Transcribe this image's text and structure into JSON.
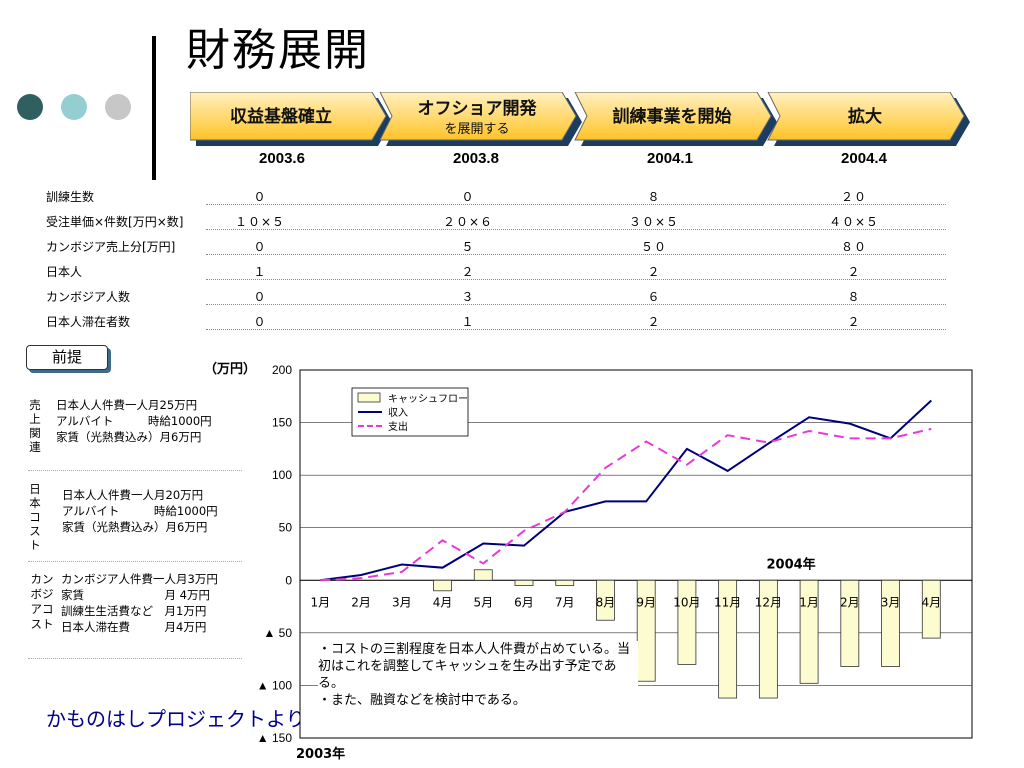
{
  "page_title": "財務展開",
  "stages": [
    {
      "label": "収益基盤確立",
      "sub": "",
      "date": "2003.6"
    },
    {
      "label": "オフショア開発",
      "sub": "を展開する",
      "date": "2003.8"
    },
    {
      "label": "訓練事業を開始",
      "sub": "",
      "date": "2004.1"
    },
    {
      "label": "拡大",
      "sub": "",
      "date": "2004.4"
    }
  ],
  "metrics": [
    {
      "label": "訓練生数",
      "values": [
        "０",
        "０",
        "８",
        "２０"
      ]
    },
    {
      "label": "受注単価×件数[万円×数]",
      "values": [
        "１０×５",
        "２０×６",
        "３０×５",
        "４０×５"
      ]
    },
    {
      "label": "カンボジア売上分[万円]",
      "values": [
        "０",
        "５",
        "５０",
        "８０"
      ]
    },
    {
      "label": "日本人",
      "values": [
        "１",
        "２",
        "２",
        "２"
      ]
    },
    {
      "label": "カンボジア人数",
      "values": [
        "０",
        "３",
        "６",
        "８"
      ]
    },
    {
      "label": "日本人滞在者数",
      "values": [
        "０",
        "１",
        "２",
        "２"
      ]
    }
  ],
  "premise_label": "前提",
  "sections": [
    {
      "head": "売上関連",
      "lines": [
        "日本人人件費一人月25万円",
        "アルバイト　　　時給1000円",
        "家賃（光熱費込み）月6万円"
      ]
    },
    {
      "head": "日本コスト",
      "lines": [
        "日本人人件費一人月20万円",
        "アルバイト　　　時給1000円",
        "家賃（光熱費込み）月6万円"
      ]
    },
    {
      "head": "カンボジアコスト",
      "lines": [
        "カンボジア人件費一人月3万円",
        "家賃　　　　　　　月 4万円",
        "訓練生生活費など　月1万円",
        "日本人滞在費　　　月4万円"
      ]
    }
  ],
  "credit": "かものはしプロジェクトより",
  "note_lines": [
    "・コストの三割程度を日本人人件費が占めている。当初はこれを調整してキャッシュを生み出す予定である。",
    "・また、融資などを検討中である。"
  ],
  "chart_data": {
    "type": "bar",
    "unit_label": "（万円）",
    "categories": [
      "1月",
      "2月",
      "3月",
      "4月",
      "5月",
      "6月",
      "7月",
      "8月",
      "9月",
      "10月",
      "11月",
      "12月",
      "1月",
      "2月",
      "3月",
      "4月"
    ],
    "year_labels": [
      "2003年",
      "2004年"
    ],
    "ylim": [
      -150,
      200
    ],
    "yticks": [
      {
        "v": 200,
        "label": "200"
      },
      {
        "v": 150,
        "label": "150"
      },
      {
        "v": 100,
        "label": "100"
      },
      {
        "v": 50,
        "label": "50"
      },
      {
        "v": 0,
        "label": "0"
      },
      {
        "v": -50,
        "label": "▲ 50"
      },
      {
        "v": -100,
        "label": "▲ 100"
      },
      {
        "v": -150,
        "label": "▲ 150"
      }
    ],
    "grid": true,
    "legend_position": "top-left",
    "series": [
      {
        "name": "キャッシュフロー",
        "kind": "bar",
        "color": "#fdfbd0",
        "values": [
          0,
          0,
          0,
          -10,
          10,
          -5,
          -5,
          -38,
          -96,
          -80,
          -112,
          -112,
          -98,
          -82,
          -82,
          -55
        ]
      },
      {
        "name": "収入",
        "kind": "line",
        "color": "#00007a",
        "values": [
          0,
          5,
          15,
          12,
          35,
          33,
          65,
          75,
          75,
          125,
          104,
          130,
          155,
          149,
          135,
          171
        ]
      },
      {
        "name": "支出",
        "kind": "dashed",
        "color": "#e83ad8",
        "values": [
          0,
          2,
          8,
          38,
          16,
          47,
          65,
          107,
          132,
          110,
          138,
          131,
          142,
          135,
          135,
          144
        ]
      }
    ]
  }
}
